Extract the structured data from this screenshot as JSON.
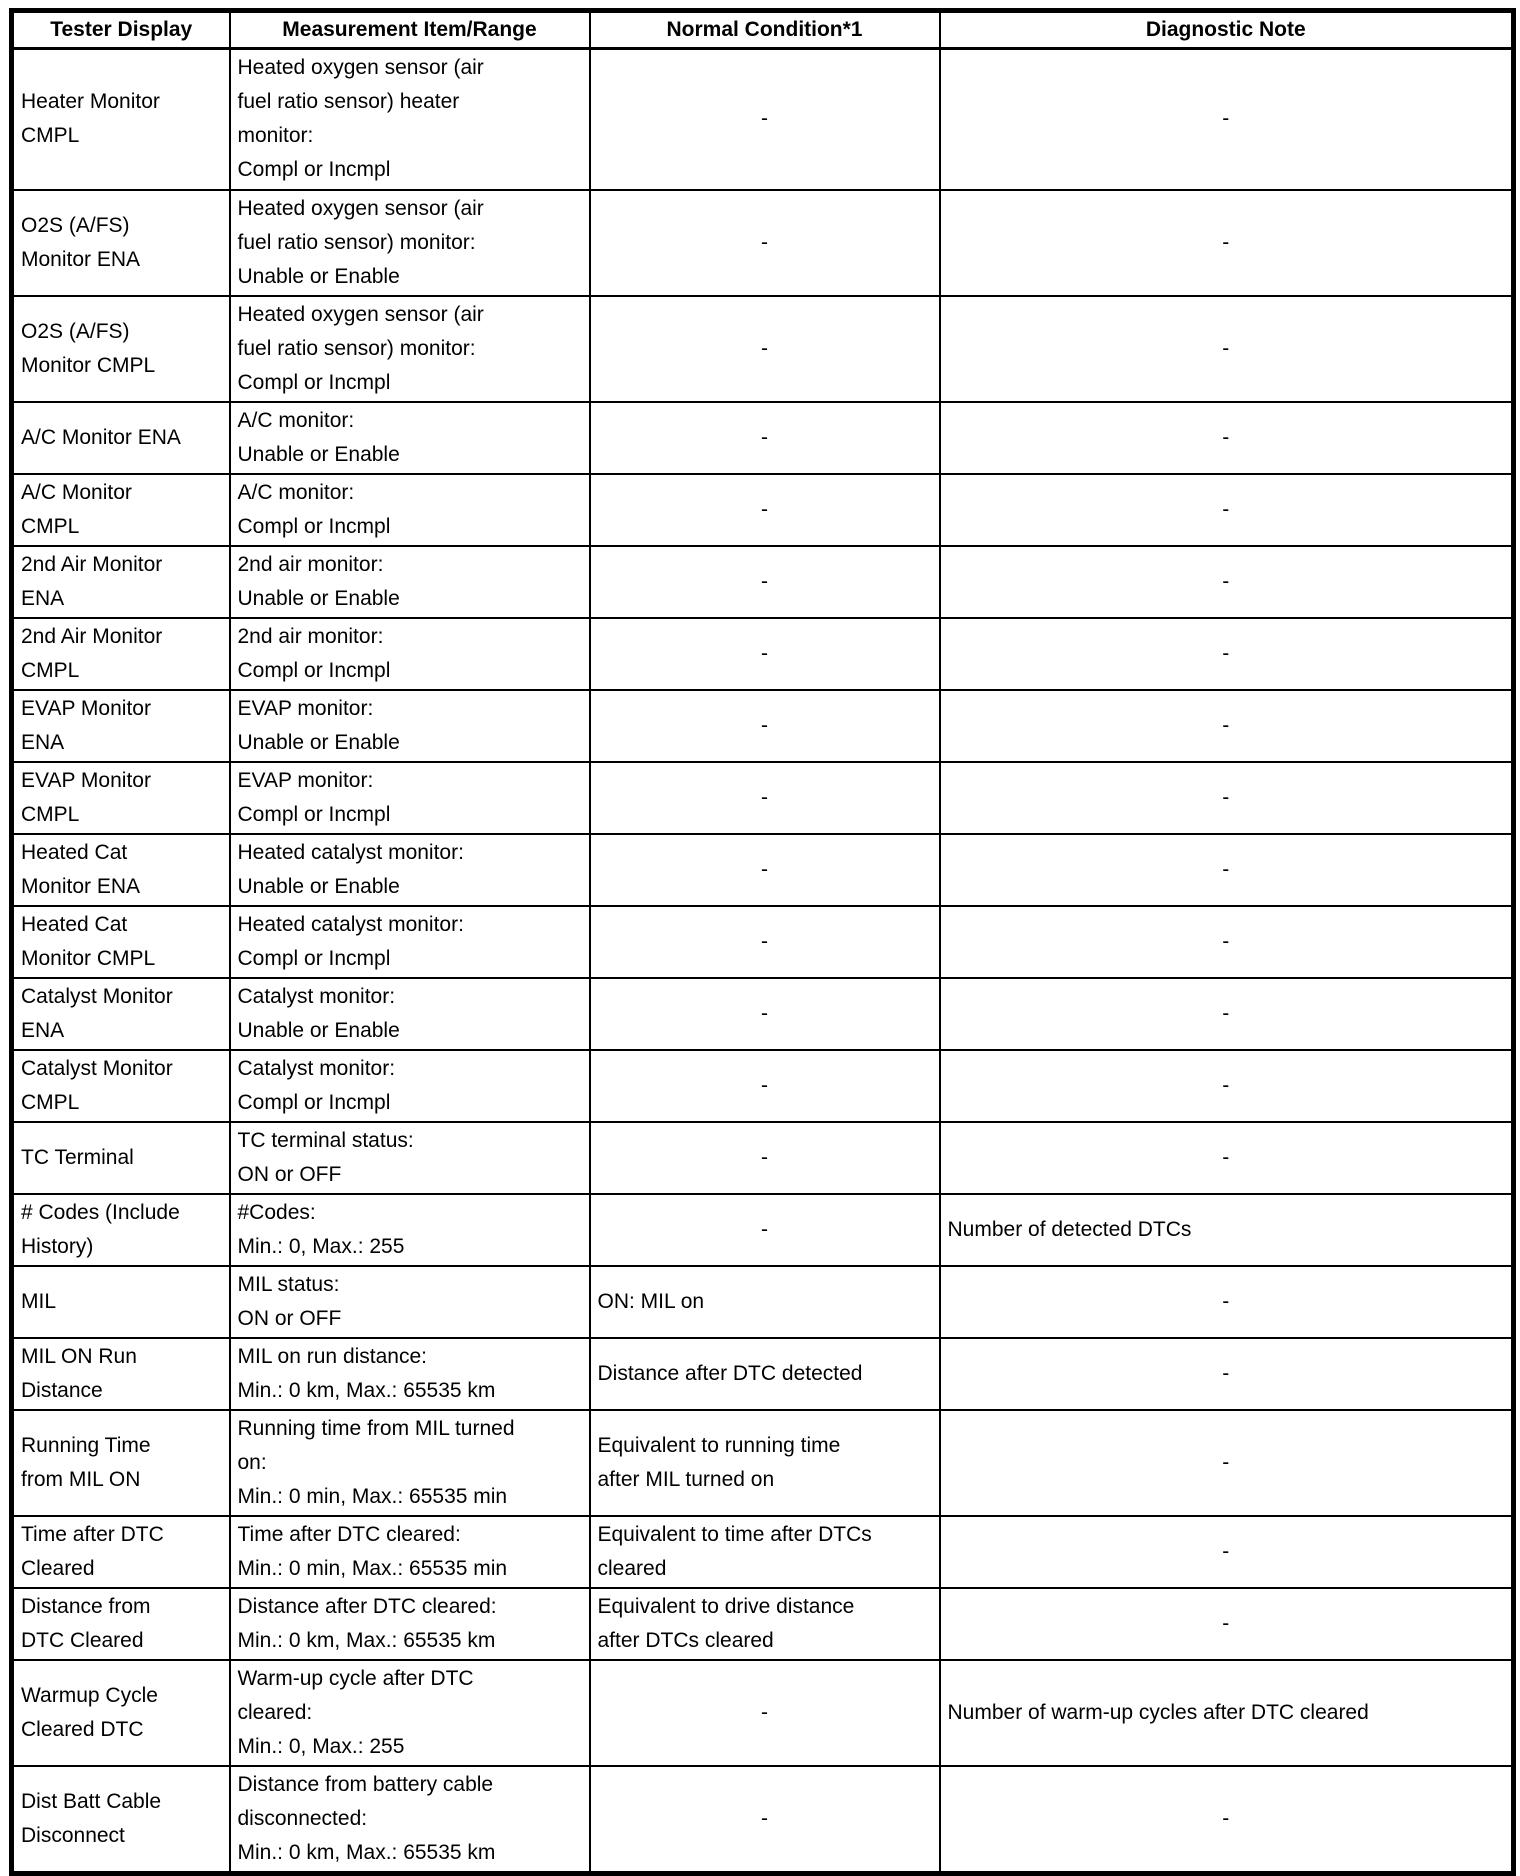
{
  "table": {
    "columns": [
      "Tester Display",
      "Measurement Item/Range",
      "Normal Condition*1",
      "Diagnostic Note"
    ],
    "rows": [
      {
        "tester_display": "Heater Monitor\nCMPL",
        "measurement_item_range": "Heated oxygen sensor (air\nfuel ratio sensor) heater\nmonitor:\nCompl or Incmpl",
        "normal_condition": "-",
        "diagnostic_note": "-"
      },
      {
        "tester_display": "O2S (A/FS)\nMonitor ENA",
        "measurement_item_range": "Heated oxygen sensor (air\nfuel ratio sensor) monitor:\nUnable or Enable",
        "normal_condition": "-",
        "diagnostic_note": "-"
      },
      {
        "tester_display": "O2S (A/FS)\nMonitor CMPL",
        "measurement_item_range": "Heated oxygen sensor (air\nfuel ratio sensor) monitor:\nCompl or Incmpl",
        "normal_condition": "-",
        "diagnostic_note": "-"
      },
      {
        "tester_display": "A/C Monitor ENA",
        "measurement_item_range": "A/C monitor:\nUnable or Enable",
        "normal_condition": "-",
        "diagnostic_note": "-"
      },
      {
        "tester_display": "A/C Monitor\nCMPL",
        "measurement_item_range": "A/C monitor:\nCompl or Incmpl",
        "normal_condition": "-",
        "diagnostic_note": "-"
      },
      {
        "tester_display": "2nd Air Monitor\nENA",
        "measurement_item_range": "2nd air monitor:\nUnable or Enable",
        "normal_condition": "-",
        "diagnostic_note": "-"
      },
      {
        "tester_display": "2nd Air Monitor\nCMPL",
        "measurement_item_range": "2nd air monitor:\nCompl or Incmpl",
        "normal_condition": "-",
        "diagnostic_note": "-"
      },
      {
        "tester_display": "EVAP Monitor\nENA",
        "measurement_item_range": "EVAP monitor:\nUnable or Enable",
        "normal_condition": "-",
        "diagnostic_note": "-"
      },
      {
        "tester_display": "EVAP Monitor\nCMPL",
        "measurement_item_range": "EVAP monitor:\nCompl or Incmpl",
        "normal_condition": "-",
        "diagnostic_note": "-"
      },
      {
        "tester_display": "Heated Cat\nMonitor ENA",
        "measurement_item_range": "Heated catalyst monitor:\nUnable or Enable",
        "normal_condition": "-",
        "diagnostic_note": "-"
      },
      {
        "tester_display": "Heated Cat\nMonitor CMPL",
        "measurement_item_range": "Heated catalyst monitor:\nCompl or Incmpl",
        "normal_condition": "-",
        "diagnostic_note": "-"
      },
      {
        "tester_display": "Catalyst Monitor\nENA",
        "measurement_item_range": "Catalyst monitor:\nUnable or Enable",
        "normal_condition": "-",
        "diagnostic_note": "-"
      },
      {
        "tester_display": "Catalyst Monitor\nCMPL",
        "measurement_item_range": "Catalyst monitor:\nCompl or Incmpl",
        "normal_condition": "-",
        "diagnostic_note": "-"
      },
      {
        "tester_display": "TC Terminal",
        "measurement_item_range": "TC terminal status:\nON or OFF",
        "normal_condition": "-",
        "diagnostic_note": "-"
      },
      {
        "tester_display": "# Codes (Include\nHistory)",
        "measurement_item_range": "#Codes:\nMin.: 0, Max.: 255",
        "normal_condition": "-",
        "diagnostic_note": "Number of detected DTCs"
      },
      {
        "tester_display": "MIL",
        "measurement_item_range": "MIL status:\nON or OFF",
        "normal_condition": "ON: MIL on",
        "diagnostic_note": "-"
      },
      {
        "tester_display": "MIL ON Run\nDistance",
        "measurement_item_range": "MIL on run distance:\nMin.: 0 km, Max.: 65535 km",
        "normal_condition": "Distance after DTC detected",
        "diagnostic_note": "-"
      },
      {
        "tester_display": "Running Time\nfrom MIL ON",
        "measurement_item_range": "Running time from MIL turned\non:\nMin.: 0 min, Max.: 65535 min",
        "normal_condition": "Equivalent to running time\nafter MIL turned on",
        "diagnostic_note": "-"
      },
      {
        "tester_display": "Time after DTC\nCleared",
        "measurement_item_range": "Time after DTC cleared:\nMin.: 0 min, Max.: 65535 min",
        "normal_condition": "Equivalent to time after DTCs\ncleared",
        "diagnostic_note": "-"
      },
      {
        "tester_display": "Distance from\nDTC Cleared",
        "measurement_item_range": "Distance after DTC cleared:\nMin.: 0 km, Max.: 65535 km",
        "normal_condition": "Equivalent to drive distance\nafter DTCs cleared",
        "diagnostic_note": "-"
      },
      {
        "tester_display": "Warmup Cycle\nCleared DTC",
        "measurement_item_range": "Warm-up cycle after DTC\ncleared:\nMin.: 0, Max.: 255",
        "normal_condition": "-",
        "diagnostic_note": "Number of warm-up cycles after DTC cleared"
      },
      {
        "tester_display": "Dist Batt Cable\nDisconnect",
        "measurement_item_range": "Distance from battery cable\ndisconnected:\nMin.: 0 km, Max.: 65535 km",
        "normal_condition": "-",
        "diagnostic_note": "-"
      }
    ]
  }
}
